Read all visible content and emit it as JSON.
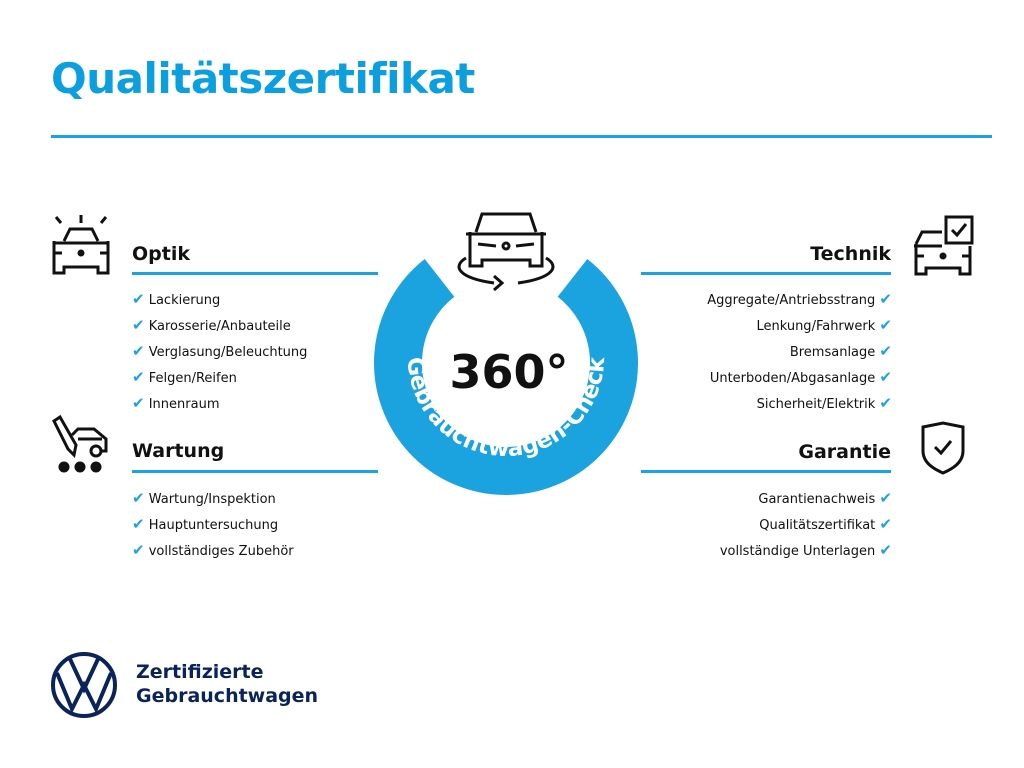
{
  "title": "Qualitätszertifikat",
  "colors": {
    "accent": "#1ba3e0",
    "brand_dark": "#0a2358"
  },
  "center": {
    "degrees": "360°",
    "ring_text": "Gebrauchtwagen-Check",
    "icon": "car-rotate-icon"
  },
  "sections": {
    "optik": {
      "heading": "Optik",
      "icon": "car-lights-icon",
      "items": [
        "Lackierung",
        "Karosserie/Anbauteile",
        "Verglasung/Beleuchtung",
        "Felgen/Reifen",
        "Innenraum"
      ]
    },
    "wartung": {
      "heading": "Wartung",
      "icon": "car-service-icon",
      "items": [
        "Wartung/Inspektion",
        "Hauptuntersuchung",
        "vollständiges Zubehör"
      ]
    },
    "technik": {
      "heading": "Technik",
      "icon": "car-checkbox-icon",
      "items": [
        "Aggregate/Antriebsstrang",
        "Lenkung/Fahrwerk",
        "Bremsanlage",
        "Unterboden/Abgasanlage",
        "Sicherheit/Elektrik"
      ]
    },
    "garantie": {
      "heading": "Garantie",
      "icon": "shield-check-icon",
      "items": [
        "Garantienachweis",
        "Qualitätszertifikat",
        "vollständige Unterlagen"
      ]
    }
  },
  "check_glyph": "✔",
  "footer": {
    "line1": "Zertifizierte",
    "line2": "Gebrauchtwagen"
  }
}
